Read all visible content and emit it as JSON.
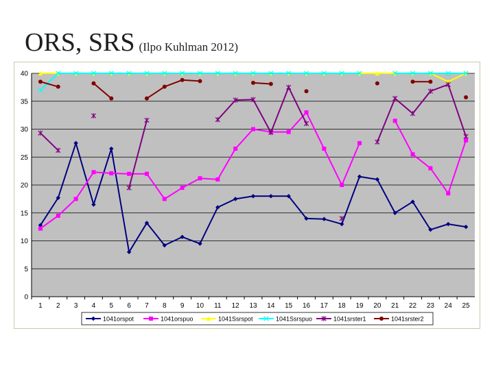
{
  "slide": {
    "title": "ORS, SRS",
    "subtitle": "(Ilpo Kuhlman 2012)"
  },
  "chart_data": {
    "type": "line",
    "categories": [
      "1",
      "2",
      "3",
      "4",
      "5",
      "6",
      "7",
      "8",
      "9",
      "10",
      "11",
      "12",
      "13",
      "14",
      "15",
      "16",
      "17",
      "18",
      "19",
      "20",
      "21",
      "22",
      "23",
      "24",
      "25"
    ],
    "ylim": [
      0,
      40
    ],
    "yticks": [
      0,
      5,
      10,
      15,
      20,
      25,
      30,
      35,
      40
    ],
    "grid": true,
    "background": "#c0c0c0",
    "legend_position": "bottom",
    "series": [
      {
        "name": "1041orspot",
        "color": "#000080",
        "marker": "diamond",
        "values": [
          12.8,
          17.7,
          27.5,
          16.5,
          26.5,
          8,
          13.2,
          9.2,
          10.7,
          9.5,
          16,
          17.5,
          18,
          18,
          18,
          14,
          13.9,
          13,
          21.5,
          21,
          15,
          17,
          12,
          13,
          12.5
        ]
      },
      {
        "name": "1041orspuo",
        "color": "#ff00ff",
        "marker": "square",
        "values": [
          12.2,
          14.5,
          17.5,
          22.3,
          22.1,
          22,
          22,
          17.5,
          19.5,
          21.2,
          21,
          26.5,
          30,
          29.5,
          29.5,
          33,
          26.5,
          20,
          27.5,
          null,
          31.5,
          25.5,
          23,
          18.5,
          28
        ]
      },
      {
        "name": "1041Ssrspot",
        "color": "#ffff00",
        "marker": "triangle",
        "values": [
          40,
          40,
          40,
          40,
          40,
          40,
          40,
          40,
          40,
          40,
          40,
          40,
          40,
          40,
          40,
          40,
          40,
          40,
          40,
          40,
          40,
          40,
          40,
          38.5,
          40
        ]
      },
      {
        "name": "1041Ssrspuo",
        "color": "#00ffff",
        "marker": "x",
        "values": [
          37,
          40,
          40,
          40,
          40,
          40,
          40,
          40,
          40,
          40,
          40,
          40,
          40,
          40,
          40,
          40,
          40,
          40,
          40,
          null,
          40,
          40,
          40,
          40,
          40
        ]
      },
      {
        "name": "1041srster1",
        "color": "#800080",
        "marker": "star",
        "values": [
          29.3,
          26.2,
          null,
          32.4,
          null,
          19.5,
          31.6,
          null,
          null,
          null,
          31.7,
          35.2,
          35.3,
          29.4,
          37.5,
          31,
          null,
          14,
          null,
          27.7,
          35.5,
          32.8,
          36.8,
          38,
          28.7
        ]
      },
      {
        "name": "1041srster2",
        "color": "#800000",
        "marker": "circle",
        "values": [
          38.5,
          37.6,
          null,
          38.2,
          35.5,
          null,
          35.5,
          37.6,
          38.8,
          38.6,
          null,
          null,
          38.3,
          38.1,
          null,
          36.8,
          null,
          null,
          null,
          38.2,
          null,
          38.5,
          38.5,
          null,
          35.7
        ]
      }
    ]
  }
}
